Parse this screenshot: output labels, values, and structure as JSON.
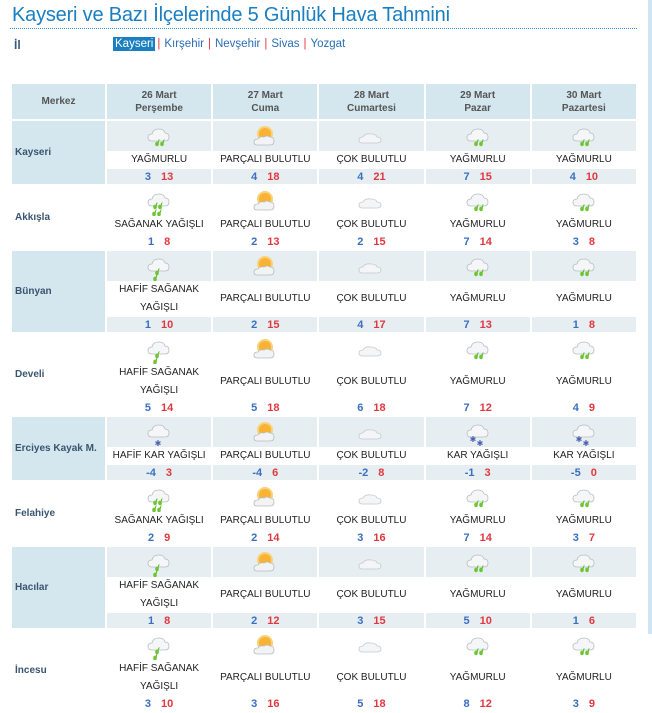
{
  "title": "Kayseri ve Bazı İlçelerinde 5 Günlük Hava Tahmini",
  "il_label": "İl",
  "cities": [
    "Kayseri",
    "Kırşehir",
    "Nevşehir",
    "Sivas",
    "Yozgat"
  ],
  "active_city": "Kayseri",
  "header": {
    "first": "Merkez",
    "days": [
      {
        "date": "26 Mart",
        "day": "Perşembe"
      },
      {
        "date": "27 Mart",
        "day": "Cuma"
      },
      {
        "date": "28 Mart",
        "day": "Cumartesi"
      },
      {
        "date": "29 Mart",
        "day": "Pazar"
      },
      {
        "date": "30 Mart",
        "day": "Pazartesi"
      }
    ]
  },
  "rows": [
    {
      "name": "Kayseri",
      "days": [
        {
          "icon": "rain",
          "c": "YAĞMURLU",
          "min": "3",
          "max": "13"
        },
        {
          "icon": "partly",
          "c": "PARÇALI BULUTLU",
          "min": "4",
          "max": "18"
        },
        {
          "icon": "cloudy",
          "c": "ÇOK BULUTLU",
          "min": "4",
          "max": "21"
        },
        {
          "icon": "rain",
          "c": "YAĞMURLU",
          "min": "7",
          "max": "15"
        },
        {
          "icon": "rain",
          "c": "YAĞMURLU",
          "min": "4",
          "max": "10"
        }
      ]
    },
    {
      "name": "Akkışla",
      "days": [
        {
          "icon": "shower",
          "c": "SAĞANAK YAĞIŞLI",
          "min": "1",
          "max": "8"
        },
        {
          "icon": "partly",
          "c": "PARÇALI BULUTLU",
          "min": "2",
          "max": "13"
        },
        {
          "icon": "cloudy",
          "c": "ÇOK BULUTLU",
          "min": "2",
          "max": "15"
        },
        {
          "icon": "rain",
          "c": "YAĞMURLU",
          "min": "7",
          "max": "14"
        },
        {
          "icon": "rain",
          "c": "YAĞMURLU",
          "min": "3",
          "max": "8"
        }
      ]
    },
    {
      "name": "Bünyan",
      "days": [
        {
          "icon": "light-shower",
          "c": "HAFİF SAĞANAK YAĞIŞLI",
          "min": "1",
          "max": "10"
        },
        {
          "icon": "partly",
          "c": "PARÇALI BULUTLU",
          "min": "2",
          "max": "15"
        },
        {
          "icon": "cloudy",
          "c": "ÇOK BULUTLU",
          "min": "4",
          "max": "17"
        },
        {
          "icon": "rain",
          "c": "YAĞMURLU",
          "min": "7",
          "max": "13"
        },
        {
          "icon": "rain",
          "c": "YAĞMURLU",
          "min": "1",
          "max": "8"
        }
      ]
    },
    {
      "name": "Develi",
      "days": [
        {
          "icon": "light-shower",
          "c": "HAFİF SAĞANAK YAĞIŞLI",
          "min": "5",
          "max": "14"
        },
        {
          "icon": "partly",
          "c": "PARÇALI BULUTLU",
          "min": "5",
          "max": "18"
        },
        {
          "icon": "cloudy",
          "c": "ÇOK BULUTLU",
          "min": "6",
          "max": "18"
        },
        {
          "icon": "rain",
          "c": "YAĞMURLU",
          "min": "7",
          "max": "12"
        },
        {
          "icon": "rain",
          "c": "YAĞMURLU",
          "min": "4",
          "max": "9"
        }
      ]
    },
    {
      "name": "Erciyes Kayak M.",
      "days": [
        {
          "icon": "light-snow",
          "c": "HAFİF KAR YAĞIŞLI",
          "min": "-4",
          "max": "3"
        },
        {
          "icon": "partly",
          "c": "PARÇALI BULUTLU",
          "min": "-4",
          "max": "6"
        },
        {
          "icon": "cloudy",
          "c": "ÇOK BULUTLU",
          "min": "-2",
          "max": "8"
        },
        {
          "icon": "snow",
          "c": "KAR YAĞIŞLI",
          "min": "-1",
          "max": "3"
        },
        {
          "icon": "snow",
          "c": "KAR YAĞIŞLI",
          "min": "-5",
          "max": "0"
        }
      ]
    },
    {
      "name": "Felahiye",
      "days": [
        {
          "icon": "shower",
          "c": "SAĞANAK YAĞIŞLI",
          "min": "2",
          "max": "9"
        },
        {
          "icon": "partly",
          "c": "PARÇALI BULUTLU",
          "min": "2",
          "max": "14"
        },
        {
          "icon": "cloudy",
          "c": "ÇOK BULUTLU",
          "min": "3",
          "max": "16"
        },
        {
          "icon": "rain",
          "c": "YAĞMURLU",
          "min": "7",
          "max": "14"
        },
        {
          "icon": "rain",
          "c": "YAĞMURLU",
          "min": "3",
          "max": "7"
        }
      ]
    },
    {
      "name": "Hacılar",
      "days": [
        {
          "icon": "light-shower",
          "c": "HAFİF SAĞANAK YAĞIŞLI",
          "min": "1",
          "max": "8"
        },
        {
          "icon": "partly",
          "c": "PARÇALI BULUTLU",
          "min": "2",
          "max": "12"
        },
        {
          "icon": "cloudy",
          "c": "ÇOK BULUTLU",
          "min": "3",
          "max": "15"
        },
        {
          "icon": "rain",
          "c": "YAĞMURLU",
          "min": "5",
          "max": "10"
        },
        {
          "icon": "rain",
          "c": "YAĞMURLU",
          "min": "1",
          "max": "6"
        }
      ]
    },
    {
      "name": "İncesu",
      "days": [
        {
          "icon": "light-shower",
          "c": "HAFİF SAĞANAK YAĞIŞLI",
          "min": "3",
          "max": "10"
        },
        {
          "icon": "partly",
          "c": "PARÇALI BULUTLU",
          "min": "3",
          "max": "16"
        },
        {
          "icon": "cloudy",
          "c": "ÇOK BULUTLU",
          "min": "5",
          "max": "18"
        },
        {
          "icon": "rain",
          "c": "YAĞMURLU",
          "min": "8",
          "max": "12"
        },
        {
          "icon": "rain",
          "c": "YAĞMURLU",
          "min": "3",
          "max": "9"
        }
      ]
    }
  ],
  "colors": {
    "title": "#1a7fc1",
    "header_bg": "#d4e6ee",
    "min": "#3a6fc0",
    "max": "#e0383e"
  }
}
